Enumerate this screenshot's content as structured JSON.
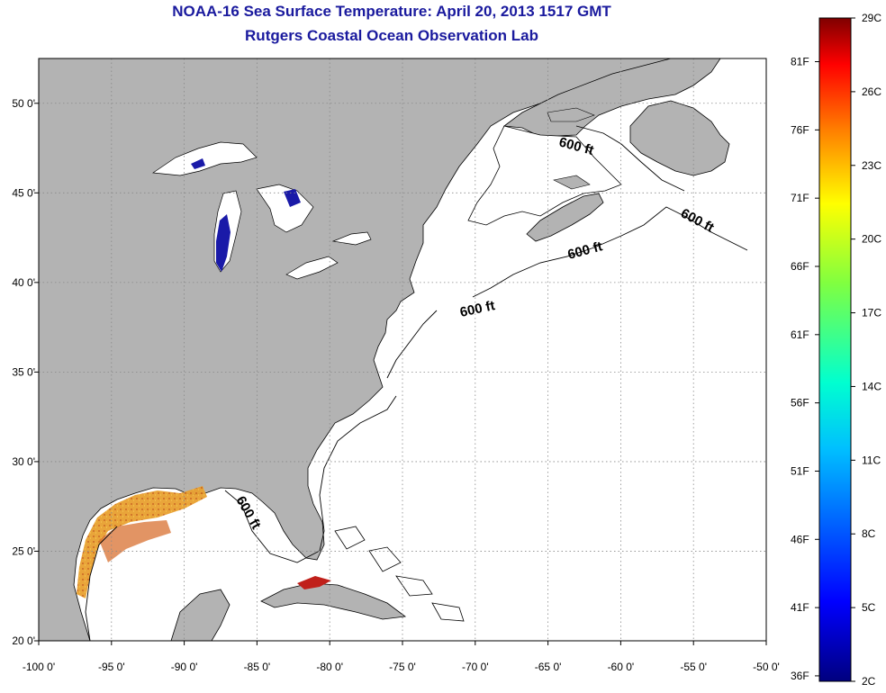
{
  "header": {
    "title": "NOAA-16 Sea Surface Temperature:  April 20, 2013 1517 GMT",
    "subtitle": "Rutgers Coastal Ocean Observation Lab"
  },
  "map": {
    "lon_range": [
      -100,
      -50
    ],
    "lat_range": [
      20,
      52.5
    ],
    "lon_ticks": [
      {
        "value": -100,
        "label": "-100 0'"
      },
      {
        "value": -95,
        "label": "-95 0'"
      },
      {
        "value": -90,
        "label": "-90 0'"
      },
      {
        "value": -85,
        "label": "-85 0'"
      },
      {
        "value": -80,
        "label": "-80 0'"
      },
      {
        "value": -75,
        "label": "-75 0'"
      },
      {
        "value": -70,
        "label": "-70 0'"
      },
      {
        "value": -65,
        "label": "-65 0'"
      },
      {
        "value": -60,
        "label": "-60 0'"
      },
      {
        "value": -55,
        "label": "-55 0'"
      },
      {
        "value": -50,
        "label": "-50 0'"
      }
    ],
    "lat_ticks": [
      {
        "value": 20,
        "label": "20 0'"
      },
      {
        "value": 25,
        "label": "25 0'"
      },
      {
        "value": 30,
        "label": "30 0'"
      },
      {
        "value": 35,
        "label": "35 0'"
      },
      {
        "value": 40,
        "label": "40 0'"
      },
      {
        "value": 45,
        "label": "45 0'"
      },
      {
        "value": 50,
        "label": "50 0'"
      }
    ],
    "contour_labels": [
      "600 ft",
      "600 ft",
      "600 ft",
      "600 ft",
      "600 ft"
    ],
    "colors": {
      "land": "#b3b3b3",
      "ocean": "#ffffff",
      "grid": "#888888"
    }
  },
  "colorbar": {
    "celsius_labels": [
      "29C",
      "26C",
      "23C",
      "20C",
      "17C",
      "14C",
      "11C",
      "8C",
      "5C",
      "2C"
    ],
    "fahrenheit_labels": [
      "81F",
      "76F",
      "71F",
      "66F",
      "61F",
      "56F",
      "51F",
      "46F",
      "41F",
      "36F"
    ],
    "range_c": [
      2,
      29
    ]
  }
}
